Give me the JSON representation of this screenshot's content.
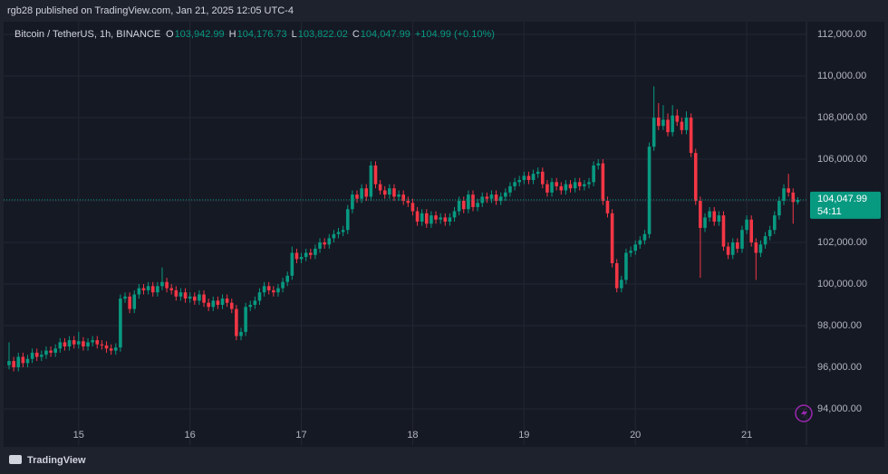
{
  "header": "rgb28 published on TradingView.com, Jan 21, 2025 12:05 UTC-4",
  "footer": "TradingView",
  "chart_data": {
    "type": "candlestick",
    "symbol": "Bitcoin / TetherUS, 1h, BINANCE",
    "ohlc_legend": [
      {
        "key": "O",
        "value": "103,942.99"
      },
      {
        "key": "H",
        "value": "104,176.73"
      },
      {
        "key": "L",
        "value": "103,822.02"
      },
      {
        "key": "C",
        "value": "104,047.99"
      }
    ],
    "change": "+104.99 (+0.10%)",
    "last_price_label": "104,047.99",
    "countdown": "54:11",
    "up_color": "#089981",
    "down_color": "#f23645",
    "grid": true,
    "ylim": [
      92260,
      112610
    ],
    "yticks": [
      {
        "value": 94000,
        "label": "94,000.00"
      },
      {
        "value": 96000,
        "label": "96,000.00"
      },
      {
        "value": 98000,
        "label": "98,000.00"
      },
      {
        "value": 100000,
        "label": "100,000.00"
      },
      {
        "value": 102000,
        "label": "102,000.00"
      },
      {
        "value": 104000,
        "label": "104,000.00"
      },
      {
        "value": 106000,
        "label": "106,000.00"
      },
      {
        "value": 108000,
        "label": "108,000.00"
      },
      {
        "value": 110000,
        "label": "110,000.00"
      },
      {
        "value": 112000,
        "label": "112,000.00"
      }
    ],
    "categories": [
      null,
      null,
      null,
      null,
      null,
      null,
      null,
      null,
      null,
      null,
      null,
      null,
      null,
      null,
      null,
      "15",
      null,
      null,
      null,
      null,
      null,
      null,
      null,
      null,
      null,
      null,
      null,
      null,
      null,
      null,
      null,
      null,
      null,
      null,
      null,
      null,
      null,
      null,
      null,
      "16",
      null,
      null,
      null,
      null,
      null,
      null,
      null,
      null,
      null,
      null,
      null,
      null,
      null,
      null,
      null,
      null,
      null,
      null,
      null,
      null,
      null,
      null,
      null,
      "17",
      null,
      null,
      null,
      null,
      null,
      null,
      null,
      null,
      null,
      null,
      null,
      null,
      null,
      null,
      null,
      null,
      null,
      null,
      null,
      null,
      null,
      null,
      null,
      "18",
      null,
      null,
      null,
      null,
      null,
      null,
      null,
      null,
      null,
      null,
      null,
      null,
      null,
      null,
      null,
      null,
      null,
      null,
      null,
      null,
      null,
      null,
      null,
      "19",
      null,
      null,
      null,
      null,
      null,
      null,
      null,
      null,
      null,
      null,
      null,
      null,
      null,
      null,
      null,
      null,
      null,
      null,
      null,
      null,
      null,
      null,
      null,
      "20",
      null,
      null,
      null,
      null,
      null,
      null,
      null,
      null,
      null,
      null,
      null,
      null,
      null,
      null,
      null,
      null,
      null,
      null,
      null,
      null,
      null,
      null,
      null,
      "21",
      null,
      null,
      null,
      null,
      null,
      null,
      null,
      null,
      null,
      null,
      null
    ],
    "open": [
      96100,
      96300,
      96000,
      96500,
      96200,
      96400,
      96700,
      96500,
      96600,
      96800,
      96700,
      96900,
      97200,
      97000,
      97300,
      97100,
      97250,
      97000,
      97200,
      97300,
      97100,
      97050,
      96900,
      96800,
      96950,
      99300,
      99400,
      98800,
      99500,
      99800,
      99700,
      99900,
      99600,
      99900,
      100100,
      99800,
      99700,
      99400,
      99600,
      99300,
      99400,
      99200,
      99500,
      99100,
      98900,
      99200,
      99000,
      99300,
      99100,
      98800,
      97500,
      97700,
      98900,
      99000,
      99200,
      99600,
      99900,
      99700,
      99600,
      99800,
      100100,
      100400,
      101500,
      101200,
      101300,
      101500,
      101400,
      101700,
      102000,
      101900,
      102200,
      102400,
      102500,
      102600,
      103600,
      104300,
      104100,
      104600,
      104200,
      105700,
      104800,
      104500,
      104300,
      104600,
      104200,
      104300,
      104000,
      103900,
      103500,
      103000,
      103400,
      102900,
      103300,
      103100,
      103200,
      103000,
      103200,
      103500,
      104000,
      103600,
      104300,
      103700,
      103900,
      104200,
      104100,
      104300,
      104000,
      104200,
      104400,
      104700,
      104900,
      105000,
      105200,
      105000,
      105300,
      105400,
      104800,
      104400,
      104900,
      104700,
      104500,
      104800,
      104600,
      104900,
      104700,
      104800,
      104900,
      105700,
      105800,
      104000,
      103400,
      101000,
      99800,
      100200,
      101500,
      101600,
      101900,
      102100,
      102400,
      106600,
      108000,
      107600,
      107900,
      107300,
      108100,
      107800,
      107400,
      108000,
      106300,
      104000,
      102700,
      103200,
      103500,
      103000,
      103300,
      101800,
      101400,
      102000,
      101700,
      102600,
      103100,
      102000,
      101500,
      101900,
      102300,
      102600,
      103300,
      104000,
      104600,
      104400,
      103942.99
    ],
    "high": [
      97200,
      96500,
      96700,
      96700,
      96600,
      96900,
      96900,
      96800,
      97000,
      97000,
      97100,
      97400,
      97400,
      97500,
      97500,
      97700,
      97450,
      97400,
      97500,
      97500,
      97300,
      97250,
      97100,
      97150,
      99500,
      99600,
      99600,
      99700,
      100000,
      100000,
      100100,
      100100,
      100100,
      100800,
      100300,
      100000,
      99900,
      99800,
      99800,
      99600,
      99600,
      99700,
      99700,
      99300,
      99400,
      99400,
      99500,
      99500,
      99300,
      99000,
      97900,
      99100,
      99200,
      99400,
      99800,
      100100,
      100100,
      99900,
      100000,
      100300,
      100600,
      101800,
      101700,
      101500,
      101700,
      101700,
      101900,
      102200,
      102200,
      102400,
      102600,
      102700,
      102800,
      103800,
      104500,
      104500,
      104800,
      104800,
      105900,
      105900,
      105000,
      104700,
      104800,
      104800,
      104500,
      104500,
      104200,
      104100,
      103700,
      103600,
      103600,
      103500,
      103500,
      103400,
      103400,
      103400,
      103700,
      104200,
      104200,
      104500,
      104500,
      104100,
      104400,
      104400,
      104500,
      104500,
      104400,
      104600,
      104900,
      105100,
      105200,
      105400,
      105400,
      105500,
      105600,
      105600,
      105000,
      105100,
      105100,
      104900,
      105000,
      105000,
      105100,
      105100,
      105000,
      105100,
      105900,
      106000,
      106000,
      104200,
      103600,
      101200,
      100400,
      101700,
      101800,
      102100,
      102300,
      102600,
      106800,
      109500,
      108700,
      108600,
      108200,
      108600,
      108400,
      108000,
      108300,
      108200,
      106500,
      104200,
      103400,
      103700,
      103700,
      103500,
      103500,
      102000,
      102200,
      102200,
      102800,
      103300,
      103300,
      102200,
      102100,
      102500,
      102800,
      103500,
      104200,
      104800,
      105300,
      104600,
      104176.73
    ],
    "low": [
      95900,
      95800,
      95800,
      96000,
      96000,
      96200,
      96300,
      96300,
      96400,
      96500,
      96500,
      96700,
      96800,
      96800,
      96900,
      96900,
      96800,
      96800,
      97000,
      96900,
      96850,
      96700,
      96600,
      96600,
      96750,
      99100,
      98600,
      98600,
      99300,
      99500,
      99500,
      99400,
      99400,
      99700,
      99600,
      99500,
      99200,
      99200,
      99100,
      99100,
      99000,
      99000,
      98900,
      98700,
      98700,
      98800,
      98800,
      98900,
      98600,
      97300,
      97300,
      97500,
      98700,
      98800,
      99000,
      99400,
      99500,
      99400,
      99400,
      99600,
      99900,
      100200,
      101000,
      101000,
      101100,
      101200,
      101200,
      101500,
      101700,
      101700,
      102000,
      102200,
      102300,
      102400,
      103400,
      103900,
      103900,
      104000,
      104000,
      104600,
      104300,
      104100,
      104100,
      104000,
      104000,
      103800,
      103700,
      103300,
      102800,
      102800,
      102700,
      102700,
      102900,
      102900,
      102800,
      102800,
      103000,
      103300,
      103400,
      103400,
      103500,
      103500,
      103700,
      103900,
      103900,
      103800,
      103800,
      104000,
      104200,
      104500,
      104700,
      104800,
      104800,
      104800,
      105100,
      104600,
      104200,
      104200,
      104500,
      104300,
      104300,
      104400,
      104400,
      104500,
      104500,
      104600,
      104700,
      105500,
      103800,
      103200,
      100800,
      99600,
      99600,
      100000,
      101300,
      101400,
      101700,
      101900,
      102200,
      106400,
      107400,
      107400,
      107100,
      107100,
      107600,
      107200,
      107200,
      106100,
      103800,
      100300,
      102500,
      103000,
      102800,
      102800,
      101600,
      101200,
      101200,
      101500,
      101500,
      102400,
      101800,
      100200,
      101300,
      101700,
      102100,
      102400,
      103100,
      103800,
      104200,
      102900,
      103822.02
    ],
    "close": [
      96300,
      96000,
      96500,
      96200,
      96400,
      96700,
      96500,
      96600,
      96800,
      96700,
      96900,
      97200,
      97000,
      97300,
      97100,
      97250,
      97000,
      97200,
      97300,
      97100,
      97050,
      96900,
      96800,
      96950,
      99300,
      99400,
      98800,
      99500,
      99800,
      99700,
      99900,
      99600,
      99900,
      100100,
      99800,
      99700,
      99400,
      99600,
      99300,
      99400,
      99200,
      99500,
      99100,
      98900,
      99200,
      99000,
      99300,
      99100,
      98800,
      97500,
      97700,
      98900,
      99000,
      99200,
      99600,
      99900,
      99700,
      99600,
      99800,
      100100,
      100400,
      101500,
      101200,
      101300,
      101500,
      101400,
      101700,
      102000,
      101900,
      102200,
      102400,
      102500,
      102600,
      103600,
      104300,
      104100,
      104600,
      104200,
      105700,
      104800,
      104500,
      104300,
      104600,
      104200,
      104300,
      104000,
      103900,
      103500,
      103000,
      103400,
      102900,
      103300,
      103100,
      103200,
      103000,
      103200,
      103500,
      104000,
      103600,
      104300,
      103700,
      103900,
      104200,
      104100,
      104300,
      104000,
      104200,
      104400,
      104700,
      104900,
      105000,
      105200,
      105000,
      105300,
      105400,
      104800,
      104400,
      104900,
      104700,
      104500,
      104800,
      104600,
      104900,
      104700,
      104800,
      104900,
      105700,
      105800,
      104000,
      103400,
      101000,
      99800,
      100200,
      101500,
      101600,
      101900,
      102100,
      102400,
      106600,
      108000,
      107600,
      107900,
      107300,
      108100,
      107800,
      107400,
      108000,
      106300,
      104000,
      102700,
      103200,
      103500,
      103000,
      103300,
      101800,
      101400,
      102000,
      101700,
      102600,
      103100,
      102000,
      101500,
      101900,
      102300,
      102600,
      103300,
      104000,
      104600,
      104400,
      103942.99,
      104047.99
    ]
  }
}
